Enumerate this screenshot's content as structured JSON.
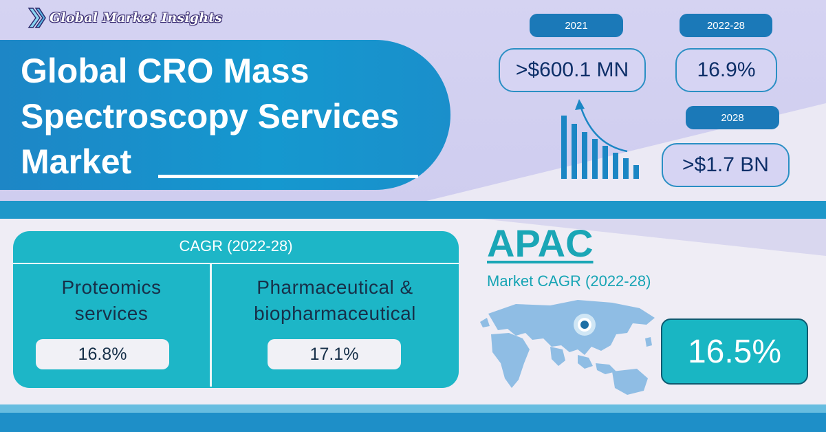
{
  "brand": {
    "logo_text": "Global Market Insights"
  },
  "title": {
    "line1": "Global CRO Mass",
    "line2": "Spectroscopy Services",
    "line3": "Market"
  },
  "stats": {
    "year_2021_label": "2021",
    "year_2021_value": ">$600.1 MN",
    "period_label": "2022-28",
    "period_value": "16.9%",
    "year_2028_label": "2028",
    "year_2028_value": ">$1.7 BN"
  },
  "cagr": {
    "header": "CAGR (2022-28)",
    "segments": [
      {
        "label_line1": "Proteomics",
        "label_line2": "services",
        "value": "16.8%"
      },
      {
        "label_line1": "Pharmaceutical &",
        "label_line2": "biopharmaceutical",
        "value": "17.1%"
      }
    ]
  },
  "region": {
    "name": "APAC",
    "subtitle": "Market CAGR (2022-28)",
    "value": "16.5%"
  },
  "colors": {
    "accent_blue": "#1598cf",
    "teal": "#1db6c7",
    "navy": "#0d2f68"
  },
  "icons": [
    "logo-mark-icon",
    "growth-bars-icon",
    "trend-arrow-icon",
    "world-map-icon",
    "location-pin-icon"
  ]
}
